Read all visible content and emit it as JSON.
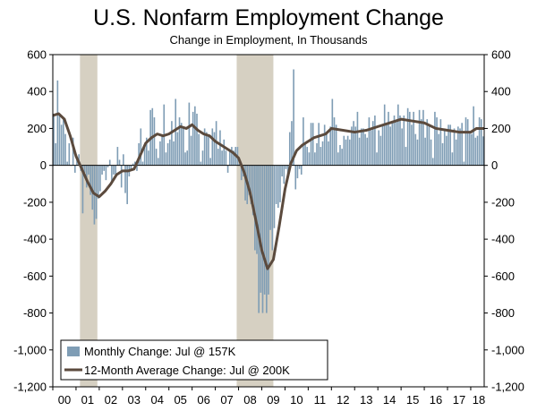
{
  "chart_data": {
    "type": "bar+line",
    "title": "U.S. Nonfarm Employment Change",
    "subtitle": "Change in Employment, In Thousands",
    "xlabel": "",
    "ylabel": "",
    "ylim": [
      -1200,
      600
    ],
    "yticks": [
      600,
      400,
      200,
      0,
      -200,
      -400,
      -600,
      -800,
      -1000,
      -1200
    ],
    "ytick_labels": [
      "600",
      "400",
      "200",
      "0",
      "-200",
      "-400",
      "-600",
      "-800",
      "-1,000",
      "-1,200"
    ],
    "xlim": [
      2000.0,
      2018.58
    ],
    "xtick_labels": [
      "00",
      "01",
      "02",
      "03",
      "04",
      "05",
      "06",
      "07",
      "08",
      "09",
      "10",
      "11",
      "12",
      "13",
      "14",
      "15",
      "16",
      "17",
      "18"
    ],
    "recessions": [
      [
        2001.17,
        2001.92
      ],
      [
        2007.92,
        2009.5
      ]
    ],
    "legend": {
      "placement": "bottom-left",
      "entries": [
        "Monthly Change: Jul @ 157K",
        "12-Month Average Change: Jul @ 200K"
      ]
    },
    "colors": {
      "bars": "#7f9db5",
      "line": "#5b4a3d",
      "recession": "#d6d0c2"
    },
    "series": [
      {
        "name": "Monthly Change: Jul @ 157K",
        "kind": "bar",
        "start": 2000.0,
        "step_months": 1,
        "values": [
          280,
          120,
          460,
          280,
          220,
          250,
          170,
          20,
          120,
          0,
          150,
          -40,
          40,
          60,
          -30,
          -260,
          -40,
          -120,
          -50,
          -160,
          -240,
          -320,
          -290,
          -180,
          -140,
          -50,
          -30,
          -80,
          -10,
          30,
          -90,
          -50,
          -60,
          100,
          30,
          -120,
          60,
          -150,
          -210,
          -60,
          -30,
          10,
          20,
          -30,
          120,
          200,
          20,
          110,
          150,
          80,
          300,
          310,
          260,
          90,
          40,
          130,
          160,
          330,
          70,
          120,
          140,
          240,
          130,
          360,
          180,
          260,
          230,
          200,
          70,
          80,
          340,
          160,
          290,
          320,
          280,
          170,
          20,
          80,
          200,
          180,
          160,
          40,
          200,
          180,
          240,
          90,
          190,
          80,
          140,
          80,
          -40,
          80,
          100,
          80,
          100,
          100,
          10,
          -80,
          -60,
          -190,
          -210,
          -160,
          -210,
          -270,
          -460,
          -480,
          -800,
          -690,
          -800,
          -700,
          -800,
          -700,
          -350,
          -460,
          -340,
          -210,
          -230,
          -200,
          -60,
          -100,
          -20,
          -60,
          180,
          240,
          520,
          -130,
          -70,
          -20,
          -50,
          260,
          120,
          100,
          70,
          230,
          230,
          70,
          120,
          230,
          100,
          130,
          220,
          180,
          130,
          210,
          360,
          260,
          220,
          70,
          110,
          90,
          160,
          140,
          160,
          140,
          210,
          240,
          210,
          290,
          150,
          200,
          200,
          170,
          150,
          260,
          190,
          240,
          270,
          70,
          190,
          160,
          220,
          330,
          230,
          290,
          210,
          230,
          270,
          240,
          330,
          270,
          200,
          270,
          100,
          310,
          290,
          220,
          290,
          170,
          140,
          300,
          250,
          300,
          150,
          250,
          210,
          140,
          40,
          290,
          260,
          170,
          250,
          120,
          200,
          160,
          220,
          220,
          70,
          200,
          140,
          210,
          200,
          230,
          20,
          260,
          250,
          180,
          170,
          320,
          150,
          160,
          260,
          250,
          157
        ]
      },
      {
        "name": "12-Month Average Change: Jul @ 200K",
        "kind": "line",
        "x": [
          2000.0,
          2000.25,
          2000.5,
          2000.75,
          2001.0,
          2001.25,
          2001.5,
          2001.75,
          2002.0,
          2002.25,
          2002.5,
          2002.75,
          2003.0,
          2003.25,
          2003.5,
          2003.75,
          2004.0,
          2004.25,
          2004.5,
          2004.75,
          2005.0,
          2005.25,
          2005.5,
          2005.75,
          2006.0,
          2006.25,
          2006.5,
          2006.75,
          2007.0,
          2007.25,
          2007.5,
          2007.75,
          2008.0,
          2008.25,
          2008.5,
          2008.75,
          2009.0,
          2009.25,
          2009.5,
          2009.75,
          2010.0,
          2010.25,
          2010.5,
          2010.75,
          2011.0,
          2011.25,
          2011.5,
          2011.75,
          2012.0,
          2012.5,
          2013.0,
          2013.5,
          2014.0,
          2014.5,
          2015.0,
          2015.5,
          2016.0,
          2016.5,
          2017.0,
          2017.5,
          2018.0,
          2018.25,
          2018.58
        ],
        "y": [
          270,
          280,
          250,
          160,
          50,
          -20,
          -90,
          -150,
          -170,
          -140,
          -100,
          -50,
          -30,
          -30,
          -20,
          50,
          120,
          150,
          170,
          160,
          170,
          190,
          210,
          200,
          220,
          190,
          170,
          160,
          130,
          110,
          90,
          70,
          40,
          -40,
          -150,
          -300,
          -460,
          -560,
          -510,
          -330,
          -130,
          10,
          80,
          110,
          130,
          150,
          160,
          170,
          200,
          190,
          180,
          190,
          210,
          230,
          250,
          240,
          230,
          200,
          190,
          180,
          180,
          200,
          200
        ]
      }
    ]
  }
}
